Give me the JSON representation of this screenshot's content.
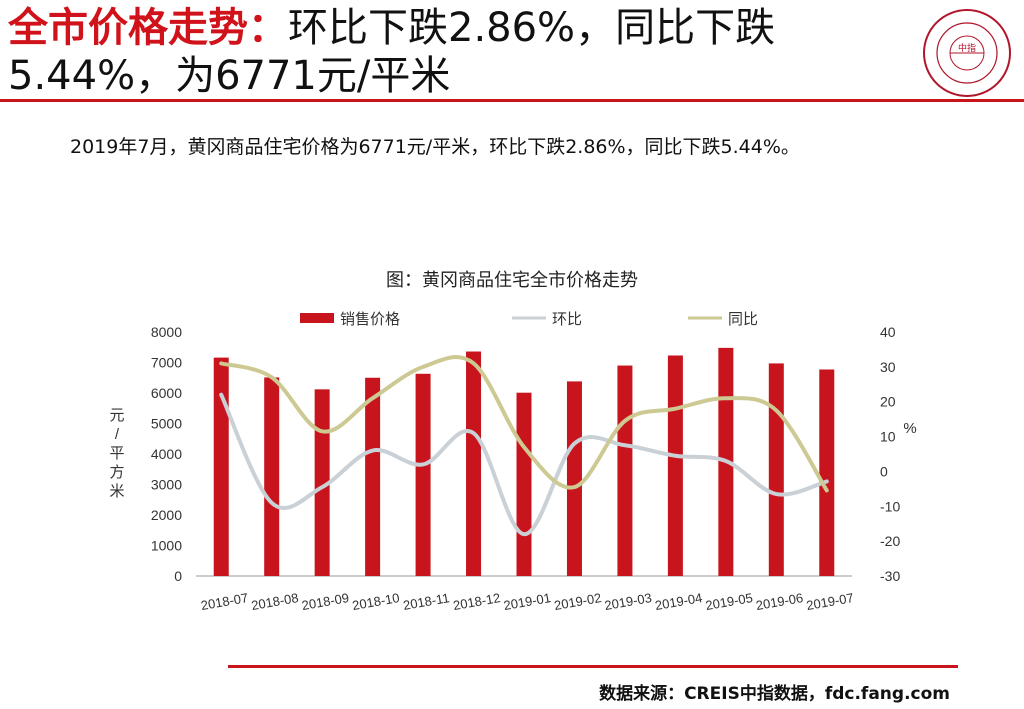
{
  "header": {
    "title_highlight": "全市价格走势：",
    "title_rest": "环比下跌2.86%，同比下跌5.44%，为6771元/平米",
    "logo_text": "中指"
  },
  "summary": "2019年7月，黄冈商品住宅价格为6771元/平米，环比下跌2.86%，同比下跌5.44%。",
  "chart_title": "图：黄冈商品住宅全市价格走势",
  "source": "数据来源：CREIS中指数据，fdc.fang.com",
  "colors": {
    "accent": "#c8141c",
    "bar": "#c8141c",
    "mom": "#c9d0d6",
    "yoy": "#cdc992"
  },
  "chart_data": {
    "type": "bar+line",
    "categories": [
      "2018-07",
      "2018-08",
      "2018-09",
      "2018-10",
      "2018-11",
      "2018-12",
      "2019-01",
      "2019-02",
      "2019-03",
      "2019-04",
      "2019-05",
      "2019-06",
      "2019-07"
    ],
    "series": [
      {
        "name": "销售价格",
        "type": "bar",
        "axis": "left",
        "values": [
          7160,
          6510,
          6120,
          6500,
          6630,
          7360,
          6010,
          6380,
          6900,
          7230,
          7480,
          6970,
          6771
        ]
      },
      {
        "name": "环比",
        "type": "line",
        "axis": "right",
        "values": [
          22,
          -9,
          -4.5,
          6,
          2,
          11,
          -18,
          8,
          7.5,
          4.5,
          3,
          -6.5,
          -2.86
        ]
      },
      {
        "name": "同比",
        "type": "line",
        "axis": "right",
        "values": [
          31,
          27,
          11.5,
          21,
          30,
          31,
          7,
          -4.5,
          14.5,
          18,
          21,
          17.5,
          -5.44
        ]
      }
    ],
    "y_left": {
      "label": "元/平方米",
      "min": 0,
      "max": 8000,
      "ticks": [
        0,
        1000,
        2000,
        3000,
        4000,
        5000,
        6000,
        7000,
        8000
      ]
    },
    "y_right": {
      "label": "%",
      "min": -30,
      "max": 40,
      "ticks": [
        -30,
        -20,
        -10,
        0,
        10,
        20,
        30,
        40
      ]
    },
    "legend_position": "top",
    "grid": false
  }
}
